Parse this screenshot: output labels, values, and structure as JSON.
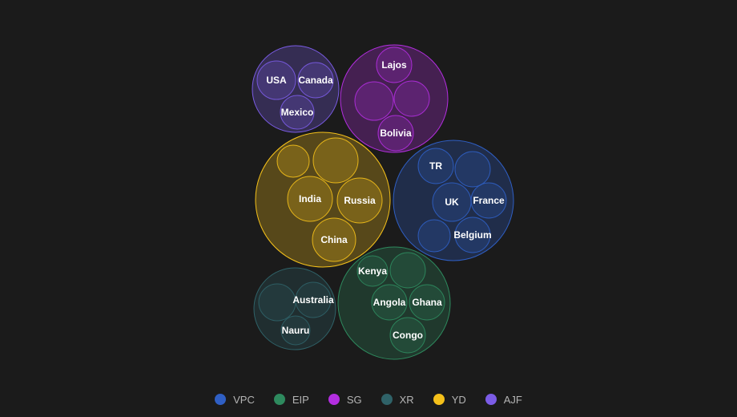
{
  "chart_data": {
    "type": "packed-bubble",
    "title": "",
    "groups": [
      {
        "name": "AJF",
        "color": "#7b5ce6",
        "leaves": [
          {
            "label": "USA",
            "value": 1
          },
          {
            "label": "Canada",
            "value": 1
          },
          {
            "label": "Mexico",
            "value": 0.85
          }
        ]
      },
      {
        "name": "SG",
        "color": "#b32ee0",
        "leaves": [
          {
            "label": "Lajos",
            "value": 1
          },
          {
            "label": "",
            "value": 1.2
          },
          {
            "label": "",
            "value": 1
          },
          {
            "label": "Bolivia",
            "value": 1
          }
        ]
      },
      {
        "name": "YD",
        "color": "#f4c01a",
        "leaves": [
          {
            "label": "",
            "value": 0.55
          },
          {
            "label": "",
            "value": 1
          },
          {
            "label": "India",
            "value": 1
          },
          {
            "label": "Russia",
            "value": 1
          },
          {
            "label": "China",
            "value": 1
          }
        ]
      },
      {
        "name": "VPC",
        "color": "#2f5fc4",
        "leaves": [
          {
            "label": "TR",
            "value": 0.7
          },
          {
            "label": "",
            "value": 0.65
          },
          {
            "label": "UK",
            "value": 0.8
          },
          {
            "label": "France",
            "value": 0.7
          },
          {
            "label": "",
            "value": 0.6
          },
          {
            "label": "Belgium",
            "value": 0.65
          }
        ]
      },
      {
        "name": "XR",
        "color": "#2f6268",
        "leaves": [
          {
            "label": "",
            "value": 0.7
          },
          {
            "label": "Australia",
            "value": 0.6
          },
          {
            "label": "Nauru",
            "value": 0.45
          }
        ]
      },
      {
        "name": "EIP",
        "color": "#2e8a5e",
        "leaves": [
          {
            "label": "Kenya",
            "value": 0.5
          },
          {
            "label": "",
            "value": 0.65
          },
          {
            "label": "Angola",
            "value": 0.65
          },
          {
            "label": "Ghana",
            "value": 0.65
          },
          {
            "label": "Congo",
            "value": 0.6
          }
        ]
      }
    ],
    "legend": {
      "placement": "bottom",
      "items": [
        "VPC",
        "EIP",
        "SG",
        "XR",
        "YD",
        "AJF"
      ]
    }
  }
}
